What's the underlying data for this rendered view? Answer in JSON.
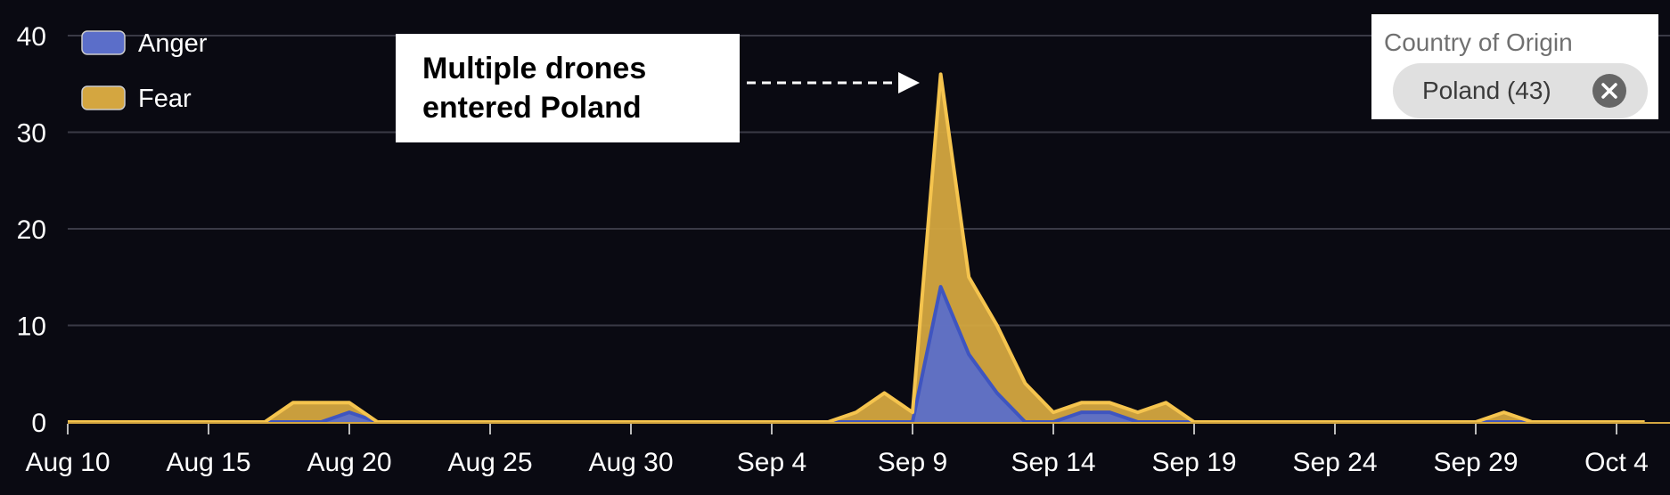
{
  "chart_data": {
    "type": "area",
    "stacked": true,
    "x": [
      "Aug 10",
      "Aug 11",
      "Aug 12",
      "Aug 13",
      "Aug 14",
      "Aug 15",
      "Aug 16",
      "Aug 17",
      "Aug 18",
      "Aug 19",
      "Aug 20",
      "Aug 21",
      "Aug 22",
      "Aug 23",
      "Aug 24",
      "Aug 25",
      "Aug 26",
      "Aug 27",
      "Aug 28",
      "Aug 29",
      "Aug 30",
      "Aug 31",
      "Sep 1",
      "Sep 2",
      "Sep 3",
      "Sep 4",
      "Sep 5",
      "Sep 6",
      "Sep 7",
      "Sep 8",
      "Sep 9",
      "Sep 10",
      "Sep 11",
      "Sep 12",
      "Sep 13",
      "Sep 14",
      "Sep 15",
      "Sep 16",
      "Sep 17",
      "Sep 18",
      "Sep 19",
      "Sep 20",
      "Sep 21",
      "Sep 22",
      "Sep 23",
      "Sep 24",
      "Sep 25",
      "Sep 26",
      "Sep 27",
      "Sep 28",
      "Sep 29",
      "Sep 30",
      "Oct 1",
      "Oct 2",
      "Oct 3",
      "Oct 4",
      "Oct 5"
    ],
    "x_tick_labels": [
      "Aug 10",
      "Aug 15",
      "Aug 20",
      "Aug 25",
      "Aug 30",
      "Sep 4",
      "Sep 9",
      "Sep 14",
      "Sep 19",
      "Sep 24",
      "Sep 29",
      "Oct 4"
    ],
    "x_tick_every": 5,
    "series": [
      {
        "name": "Anger",
        "color": "#5b6ec9",
        "edge": "#3f55c0",
        "values": [
          0,
          0,
          0,
          0,
          0,
          0,
          0,
          0,
          0,
          0,
          1,
          0,
          0,
          0,
          0,
          0,
          0,
          0,
          0,
          0,
          0,
          0,
          0,
          0,
          0,
          0,
          0,
          0,
          0,
          0,
          0,
          14,
          7,
          3,
          0,
          0,
          1,
          1,
          0,
          0,
          0,
          0,
          0,
          0,
          0,
          0,
          0,
          0,
          0,
          0,
          0,
          0,
          0,
          0,
          0,
          0,
          0
        ]
      },
      {
        "name": "Fear",
        "color": "#d4a640",
        "edge": "#f5c44e",
        "values": [
          0,
          0,
          0,
          0,
          0,
          0,
          0,
          0,
          2,
          2,
          1,
          0,
          0,
          0,
          0,
          0,
          0,
          0,
          0,
          0,
          0,
          0,
          0,
          0,
          0,
          0,
          0,
          0,
          1,
          3,
          1,
          22,
          8,
          7,
          4,
          1,
          1,
          1,
          1,
          2,
          0,
          0,
          0,
          0,
          0,
          0,
          0,
          0,
          0,
          0,
          0,
          1,
          0,
          0,
          0,
          0,
          0
        ]
      }
    ],
    "y_ticks": [
      0,
      10,
      20,
      30,
      40
    ],
    "ylim": [
      0,
      40
    ],
    "grid": true,
    "legend_position": "top-left",
    "annotation": {
      "lines": [
        "Multiple drones",
        "entered Poland"
      ],
      "points_to": "Sep 10"
    }
  },
  "filter": {
    "title": "Country of Origin",
    "chip_label": "Poland (43)",
    "chip_icon": "close-icon"
  }
}
